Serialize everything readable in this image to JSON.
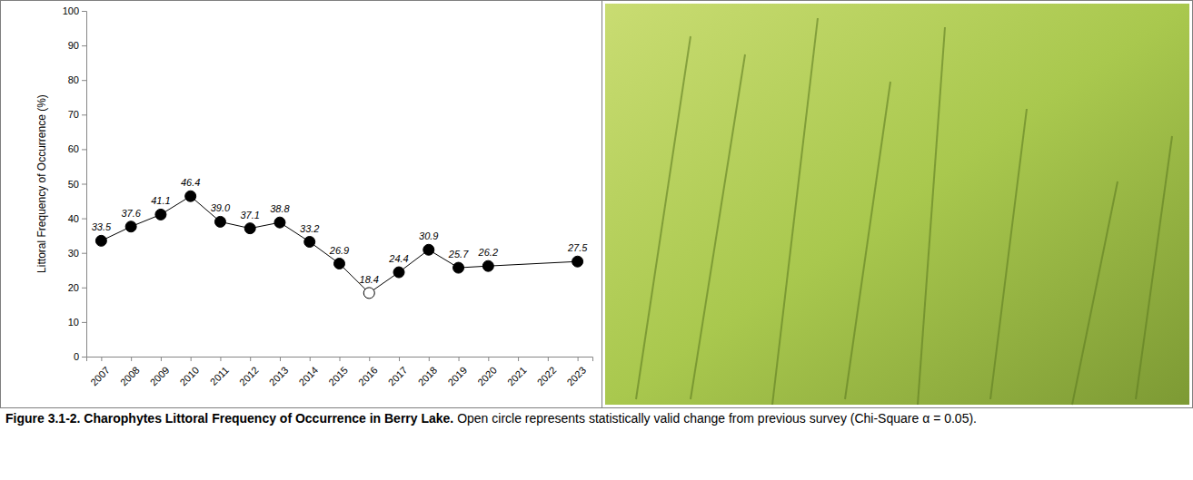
{
  "chart_data": {
    "type": "line",
    "title": "Figure 3.1-2.  Charophytes Littoral Frequency of Occurrence in Berry Lake.",
    "subtitle": "Open circle represents statistically valid change from previous survey (Chi-Square α = 0.05).",
    "y_label": "Littoral Frequency of Occurrence (%)",
    "x": [
      2007,
      2008,
      2009,
      2010,
      2011,
      2012,
      2013,
      2014,
      2015,
      2016,
      2017,
      2018,
      2019,
      2020,
      2023
    ],
    "values": [
      33.5,
      37.6,
      41.1,
      46.4,
      39.0,
      37.1,
      38.8,
      33.2,
      26.9,
      18.4,
      24.4,
      30.9,
      25.7,
      26.2,
      27.5
    ],
    "value_labels": [
      "33.5",
      "37.6",
      "41.1",
      "46.4",
      "39.0",
      "37.1",
      "38.8",
      "33.2",
      "26.9",
      "18.4",
      "24.4",
      "30.9",
      "25.7",
      "26.2",
      "27.5"
    ],
    "significant_change": [
      false,
      false,
      false,
      false,
      false,
      false,
      false,
      false,
      false,
      true,
      false,
      false,
      false,
      false,
      false
    ],
    "color": "#000000",
    "marker": "circle",
    "line_style": "solid",
    "data_labels": true,
    "grid": false,
    "xlim": [
      2006.5,
      2023.5
    ],
    "xticks": [
      2007,
      2008,
      2009,
      2010,
      2011,
      2012,
      2013,
      2014,
      2015,
      2016,
      2017,
      2018,
      2019,
      2020,
      2021,
      2022,
      2023
    ],
    "ylim": [
      0,
      100
    ],
    "yticks": [
      0,
      10,
      20,
      30,
      40,
      50,
      60,
      70,
      80,
      90,
      100
    ]
  }
}
